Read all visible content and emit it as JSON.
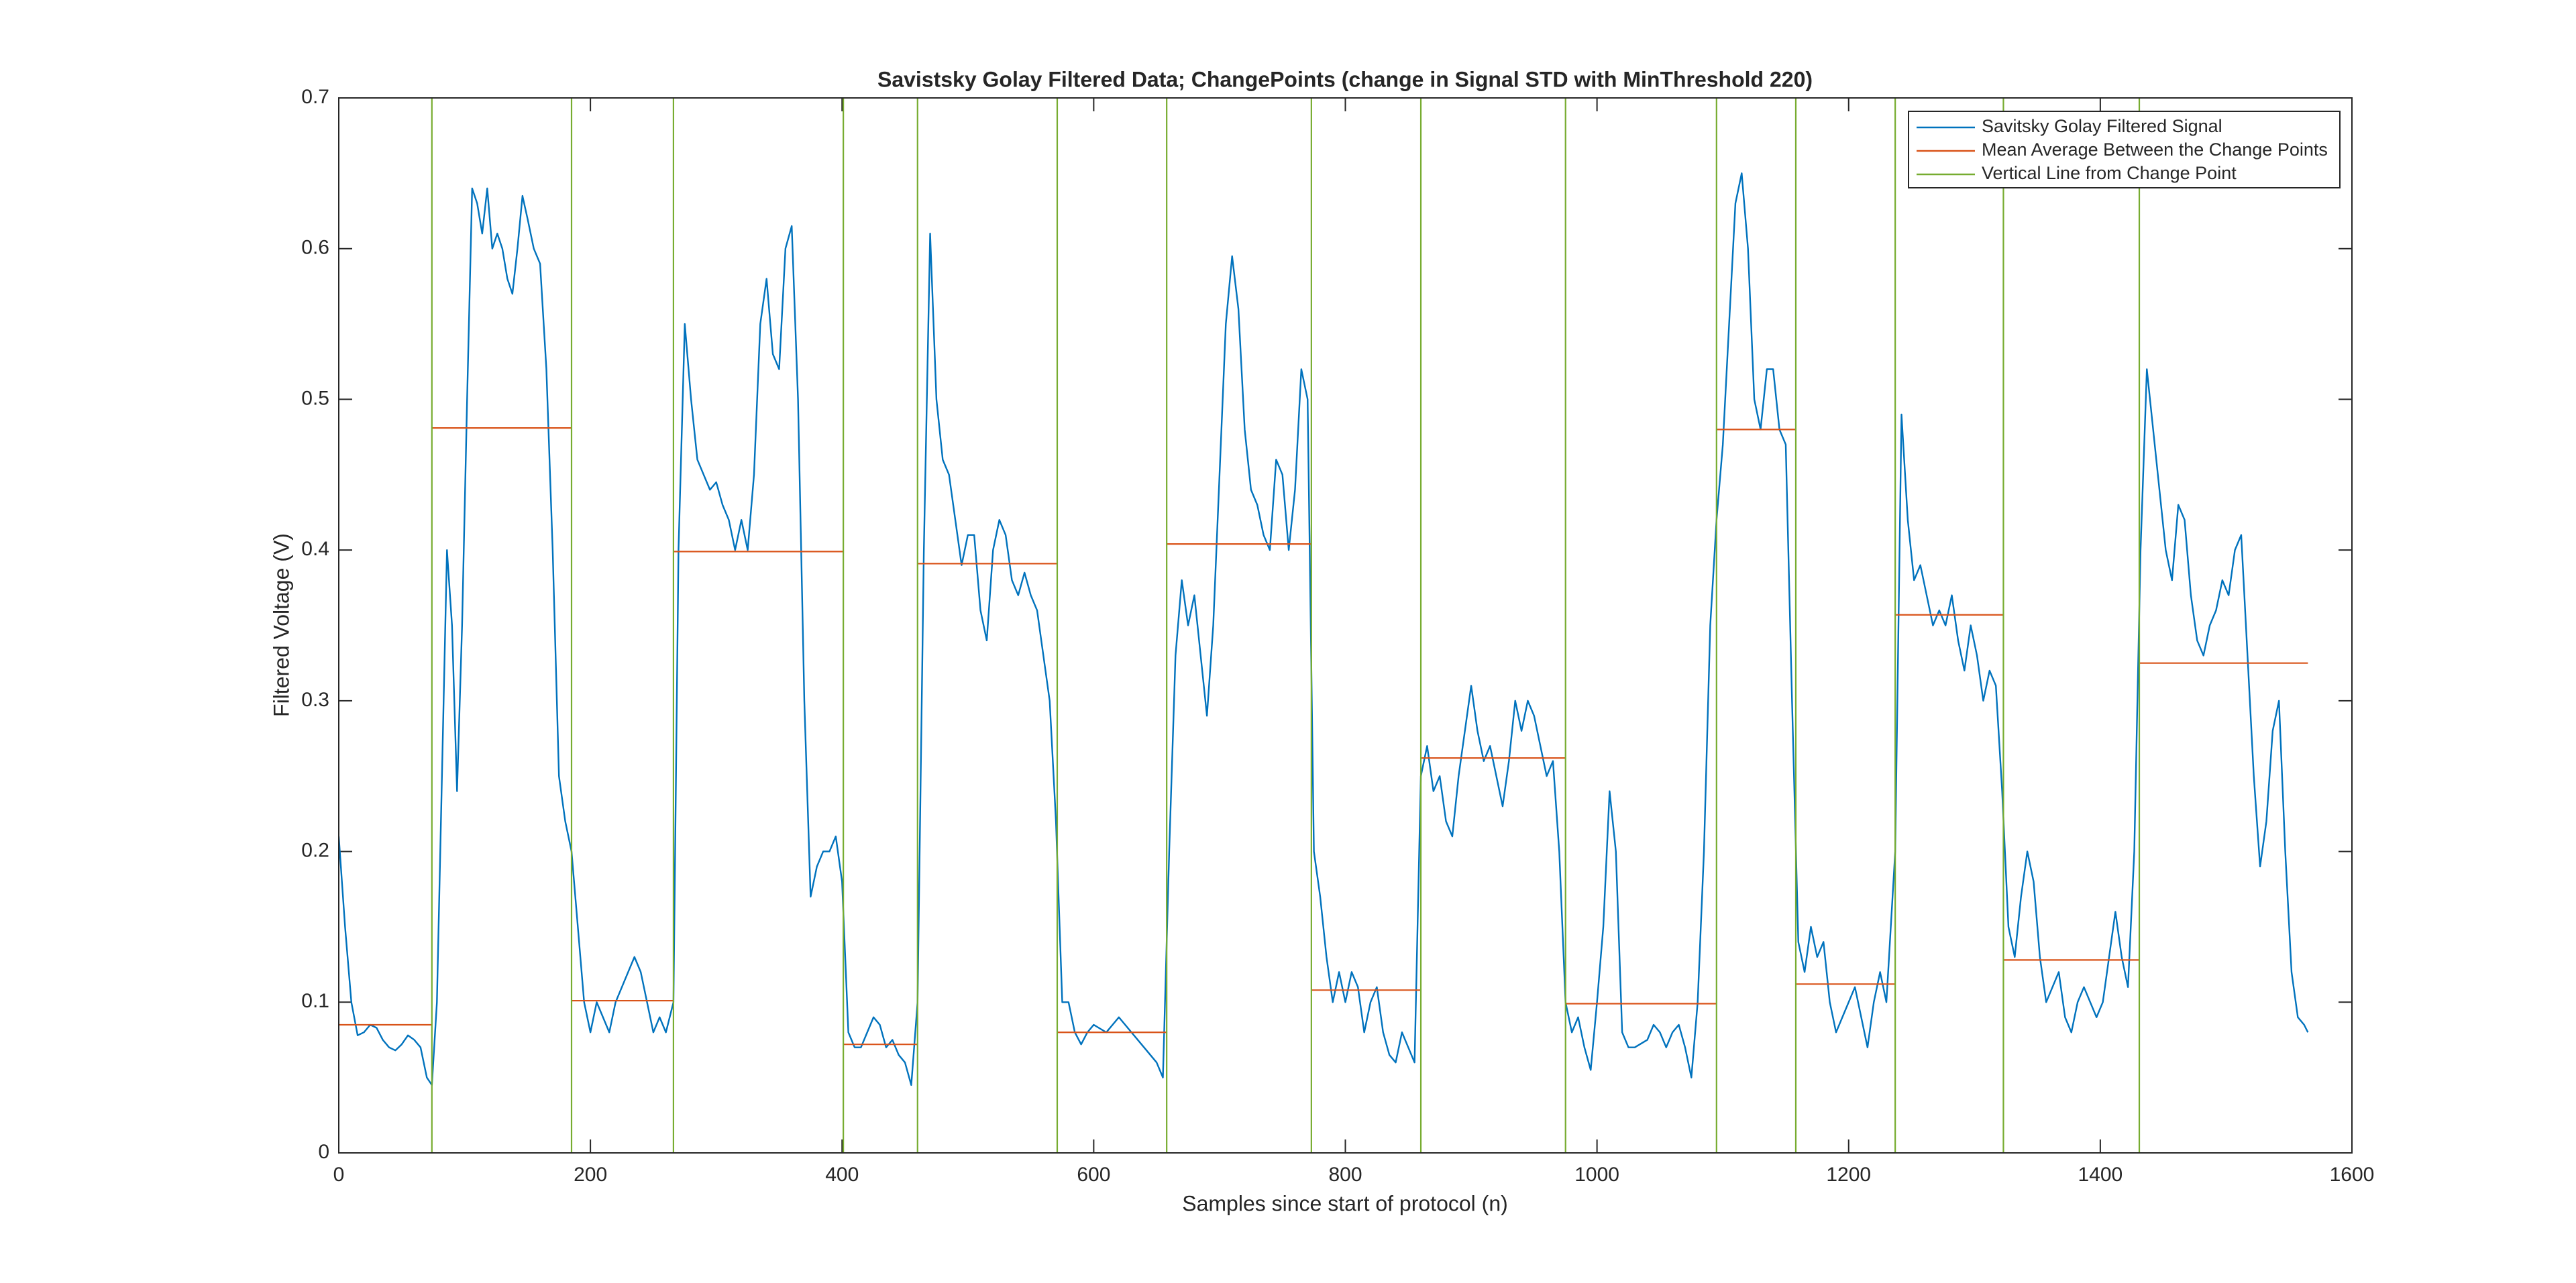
{
  "chart_data": {
    "type": "line",
    "title": "Savistsky Golay Filtered Data; ChangePoints (change in Signal STD with MinThreshold 220)",
    "x_label": "Samples since start of protocol (n)",
    "y_label": "Filtered Voltage (V)",
    "xlim": [
      0,
      1600
    ],
    "ylim": [
      0,
      0.7
    ],
    "xticks": [
      0,
      200,
      400,
      600,
      800,
      1000,
      1200,
      1400,
      1600
    ],
    "yticks": [
      0,
      0.1,
      0.2,
      0.3,
      0.4,
      0.5,
      0.6,
      0.7
    ],
    "grid": false,
    "legend": "upper right",
    "series": [
      {
        "name": "Savitsky Golay Filtered Signal",
        "color": "#0072bd",
        "x": [
          0,
          5,
          10,
          15,
          20,
          25,
          30,
          35,
          40,
          45,
          50,
          55,
          60,
          65,
          70,
          74,
          78,
          82,
          86,
          90,
          94,
          98,
          102,
          106,
          110,
          114,
          118,
          122,
          126,
          130,
          134,
          138,
          142,
          146,
          150,
          155,
          160,
          165,
          170,
          175,
          180,
          185,
          190,
          195,
          200,
          205,
          210,
          215,
          220,
          225,
          230,
          235,
          240,
          245,
          250,
          255,
          260,
          266,
          270,
          275,
          280,
          285,
          290,
          295,
          300,
          305,
          310,
          315,
          320,
          325,
          330,
          335,
          340,
          345,
          350,
          355,
          360,
          365,
          370,
          375,
          380,
          385,
          390,
          395,
          400,
          405,
          410,
          415,
          420,
          425,
          430,
          435,
          440,
          445,
          450,
          455,
          460,
          465,
          470,
          475,
          480,
          485,
          490,
          495,
          500,
          505,
          510,
          515,
          520,
          525,
          530,
          535,
          540,
          545,
          550,
          555,
          560,
          565,
          570,
          575,
          580,
          585,
          590,
          595,
          600,
          610,
          620,
          630,
          640,
          650,
          655,
          660,
          665,
          670,
          675,
          680,
          685,
          690,
          695,
          700,
          705,
          710,
          715,
          720,
          725,
          730,
          735,
          740,
          745,
          750,
          755,
          760,
          765,
          770,
          775,
          780,
          785,
          790,
          795,
          800,
          805,
          810,
          815,
          820,
          825,
          830,
          835,
          840,
          845,
          850,
          855,
          860,
          865,
          870,
          875,
          880,
          885,
          890,
          895,
          900,
          905,
          910,
          915,
          920,
          925,
          930,
          935,
          940,
          945,
          950,
          955,
          960,
          965,
          970,
          975,
          980,
          985,
          990,
          995,
          1000,
          1005,
          1010,
          1015,
          1020,
          1025,
          1030,
          1040,
          1045,
          1050,
          1055,
          1060,
          1065,
          1070,
          1075,
          1080,
          1085,
          1090,
          1095,
          1100,
          1105,
          1110,
          1115,
          1120,
          1125,
          1130,
          1135,
          1140,
          1145,
          1150,
          1155,
          1160,
          1165,
          1170,
          1175,
          1180,
          1185,
          1190,
          1195,
          1200,
          1205,
          1210,
          1215,
          1220,
          1225,
          1230,
          1237,
          1242,
          1247,
          1252,
          1257,
          1262,
          1267,
          1272,
          1277,
          1282,
          1287,
          1292,
          1297,
          1302,
          1307,
          1312,
          1317,
          1322,
          1327,
          1332,
          1337,
          1342,
          1347,
          1352,
          1357,
          1362,
          1367,
          1372,
          1377,
          1382,
          1387,
          1392,
          1397,
          1402,
          1407,
          1412,
          1417,
          1422,
          1427,
          1432,
          1437,
          1442,
          1447,
          1452,
          1457,
          1462,
          1467,
          1472,
          1477,
          1482,
          1487,
          1492,
          1497,
          1502,
          1507,
          1512,
          1517,
          1522,
          1527,
          1532,
          1537,
          1542,
          1547,
          1552,
          1557,
          1562,
          1565
        ],
        "values": [
          0.21,
          0.15,
          0.1,
          0.078,
          0.08,
          0.085,
          0.083,
          0.075,
          0.07,
          0.068,
          0.072,
          0.078,
          0.075,
          0.07,
          0.05,
          0.045,
          0.1,
          0.25,
          0.4,
          0.35,
          0.24,
          0.35,
          0.5,
          0.64,
          0.63,
          0.61,
          0.64,
          0.6,
          0.61,
          0.6,
          0.58,
          0.57,
          0.6,
          0.635,
          0.62,
          0.6,
          0.59,
          0.52,
          0.4,
          0.25,
          0.22,
          0.2,
          0.15,
          0.1,
          0.08,
          0.1,
          0.09,
          0.08,
          0.1,
          0.11,
          0.12,
          0.13,
          0.12,
          0.1,
          0.08,
          0.09,
          0.08,
          0.1,
          0.4,
          0.55,
          0.5,
          0.46,
          0.45,
          0.44,
          0.445,
          0.43,
          0.42,
          0.4,
          0.42,
          0.4,
          0.45,
          0.55,
          0.58,
          0.53,
          0.52,
          0.6,
          0.615,
          0.5,
          0.3,
          0.17,
          0.19,
          0.2,
          0.2,
          0.21,
          0.18,
          0.08,
          0.07,
          0.07,
          0.08,
          0.09,
          0.085,
          0.07,
          0.075,
          0.065,
          0.06,
          0.045,
          0.1,
          0.4,
          0.61,
          0.5,
          0.46,
          0.45,
          0.42,
          0.39,
          0.41,
          0.41,
          0.36,
          0.34,
          0.4,
          0.42,
          0.41,
          0.38,
          0.37,
          0.385,
          0.37,
          0.36,
          0.33,
          0.3,
          0.22,
          0.1,
          0.1,
          0.08,
          0.072,
          0.08,
          0.085,
          0.08,
          0.09,
          0.08,
          0.07,
          0.06,
          0.05,
          0.2,
          0.33,
          0.38,
          0.35,
          0.37,
          0.33,
          0.29,
          0.35,
          0.45,
          0.55,
          0.595,
          0.56,
          0.48,
          0.44,
          0.43,
          0.41,
          0.4,
          0.46,
          0.45,
          0.4,
          0.44,
          0.52,
          0.5,
          0.2,
          0.17,
          0.13,
          0.1,
          0.12,
          0.1,
          0.12,
          0.11,
          0.08,
          0.1,
          0.11,
          0.08,
          0.065,
          0.06,
          0.08,
          0.07,
          0.06,
          0.25,
          0.27,
          0.24,
          0.25,
          0.22,
          0.21,
          0.25,
          0.28,
          0.31,
          0.28,
          0.26,
          0.27,
          0.25,
          0.23,
          0.26,
          0.3,
          0.28,
          0.3,
          0.29,
          0.27,
          0.25,
          0.26,
          0.2,
          0.1,
          0.08,
          0.09,
          0.07,
          0.055,
          0.1,
          0.15,
          0.24,
          0.2,
          0.08,
          0.07,
          0.07,
          0.075,
          0.085,
          0.08,
          0.07,
          0.08,
          0.085,
          0.07,
          0.05,
          0.1,
          0.2,
          0.35,
          0.42,
          0.47,
          0.55,
          0.63,
          0.65,
          0.6,
          0.5,
          0.48,
          0.52,
          0.52,
          0.48,
          0.47,
          0.3,
          0.14,
          0.12,
          0.15,
          0.13,
          0.14,
          0.1,
          0.08,
          0.09,
          0.1,
          0.11,
          0.09,
          0.07,
          0.1,
          0.12,
          0.1,
          0.2,
          0.49,
          0.42,
          0.38,
          0.39,
          0.37,
          0.35,
          0.36,
          0.35,
          0.37,
          0.34,
          0.32,
          0.35,
          0.33,
          0.3,
          0.32,
          0.31,
          0.24,
          0.15,
          0.13,
          0.17,
          0.2,
          0.18,
          0.13,
          0.1,
          0.11,
          0.12,
          0.09,
          0.08,
          0.1,
          0.11,
          0.1,
          0.09,
          0.1,
          0.13,
          0.16,
          0.13,
          0.11,
          0.2,
          0.4,
          0.52,
          0.48,
          0.44,
          0.4,
          0.38,
          0.43,
          0.42,
          0.37,
          0.34,
          0.33,
          0.35,
          0.36,
          0.38,
          0.37,
          0.4,
          0.41,
          0.33,
          0.25,
          0.19,
          0.22,
          0.28,
          0.3,
          0.2,
          0.12,
          0.09,
          0.085,
          0.08
        ]
      },
      {
        "name": "Mean Average Between the Change Points",
        "color": "#d95319",
        "x_start": [
          0,
          74,
          185,
          266,
          401,
          460,
          571,
          658,
          773,
          860,
          975,
          1095,
          1158,
          1237,
          1323,
          1431
        ],
        "x_end": [
          74,
          185,
          266,
          401,
          460,
          571,
          658,
          773,
          860,
          975,
          1095,
          1158,
          1237,
          1323,
          1431,
          1565
        ],
        "values": [
          0.085,
          0.481,
          0.101,
          0.399,
          0.072,
          0.391,
          0.08,
          0.404,
          0.108,
          0.262,
          0.099,
          0.48,
          0.112,
          0.357,
          0.128,
          0.325
        ]
      },
      {
        "name": "Vertical Line from Change Point",
        "color": "#77ac30",
        "x": [
          74,
          185,
          266,
          401,
          460,
          571,
          658,
          773,
          860,
          975,
          1095,
          1158,
          1237,
          1323,
          1431
        ]
      }
    ]
  }
}
